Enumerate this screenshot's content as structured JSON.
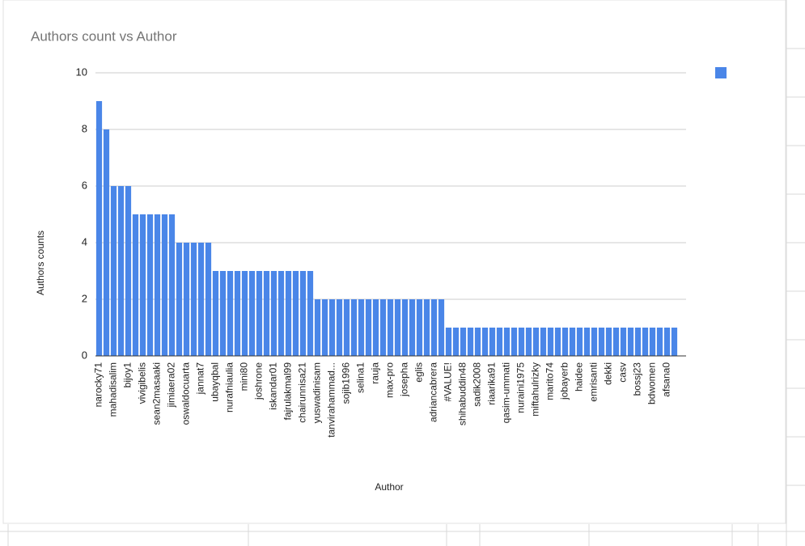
{
  "chart_data": {
    "type": "bar",
    "title": "Authors count vs Author",
    "x_label": "Author",
    "y_label": "Authors counts",
    "categories": [
      "narocky71",
      null,
      "mahadisalim",
      null,
      "bijoy1",
      null,
      "vivigibelis",
      null,
      "sean2masaaki",
      null,
      "jimiaera02",
      null,
      "oswaldocuarta",
      null,
      "jannat7",
      null,
      "ubayqbal",
      null,
      "nurafniaulia",
      null,
      "mini80",
      null,
      "joshrone",
      null,
      "iskandar01",
      null,
      "fajrulakmal99",
      null,
      "chairunnisa21",
      null,
      "yuswadinisam",
      null,
      "tanvirahammad...",
      null,
      "sojib1996",
      null,
      "selina1",
      null,
      "rauja",
      null,
      "max-pro",
      null,
      "josepha",
      null,
      "eglis",
      null,
      "adriancabrera",
      null,
      "#VALUE!",
      null,
      "shihabuddin48",
      null,
      "sadik2008",
      null,
      "riaarika91",
      null,
      "qasim-ummati",
      null,
      "nuraini1975",
      null,
      "miftahulrizky",
      null,
      "marito74",
      null,
      "jobayerb",
      null,
      "haidee",
      null,
      "emrisanti",
      null,
      "dekki",
      null,
      "casv",
      null,
      "bossj23",
      null,
      "bdwomen",
      null,
      "afsana0",
      null
    ],
    "values": [
      9,
      8,
      6,
      6,
      6,
      5,
      5,
      5,
      5,
      5,
      5,
      4,
      4,
      4,
      4,
      4,
      3,
      3,
      3,
      3,
      3,
      3,
      3,
      3,
      3,
      3,
      3,
      3,
      3,
      3,
      2,
      2,
      2,
      2,
      2,
      2,
      2,
      2,
      2,
      2,
      2,
      2,
      2,
      2,
      2,
      2,
      2,
      2,
      1,
      1,
      1,
      1,
      1,
      1,
      1,
      1,
      1,
      1,
      1,
      1,
      1,
      1,
      1,
      1,
      1,
      1,
      1,
      1,
      1,
      1,
      1,
      1,
      1,
      1,
      1,
      1,
      1,
      1,
      1,
      1
    ],
    "color": "#4a86e8",
    "ylim": [
      0,
      10
    ],
    "yticks": [
      0,
      2,
      4,
      6,
      8,
      10
    ],
    "grid": true,
    "legend": "top-right"
  }
}
